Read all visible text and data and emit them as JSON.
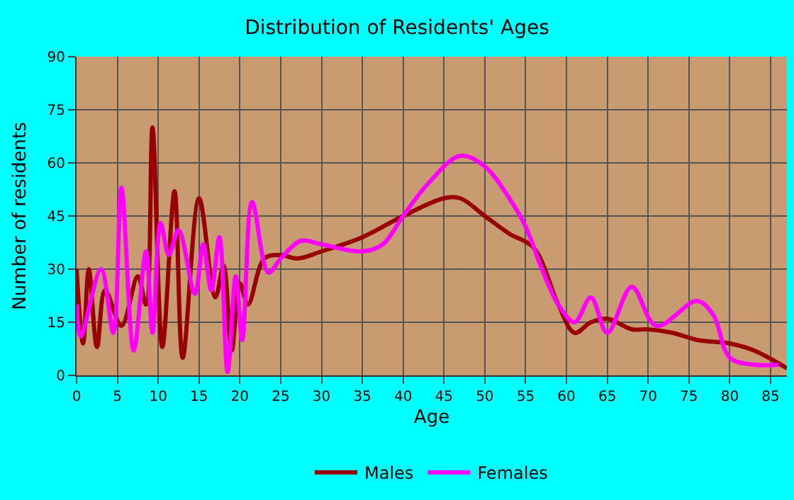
{
  "chart_data": {
    "type": "line",
    "title": "Distribution of Residents' Ages",
    "xlabel": "Age",
    "ylabel": "Number of residents",
    "xlim": [
      0,
      87
    ],
    "xticks": [
      0,
      5,
      10,
      15,
      20,
      25,
      30,
      35,
      40,
      45,
      50,
      55,
      60,
      65,
      70,
      75,
      80,
      85
    ],
    "ylim": [
      0,
      90
    ],
    "yticks": [
      0,
      15,
      30,
      45,
      60,
      75,
      90
    ],
    "grid": true,
    "legend": "bottom",
    "marker": "none",
    "line_style": "solid",
    "series": [
      {
        "name": "Males",
        "color": "#990000",
        "x": [
          0,
          0.8,
          1.5,
          2.5,
          3.5,
          5.5,
          7.5,
          8.5,
          9.3,
          10.5,
          12,
          13,
          15,
          17,
          18,
          19,
          20,
          21,
          23,
          25,
          27,
          30,
          35,
          40,
          45,
          47,
          50,
          53,
          56,
          59,
          61,
          63,
          65,
          68,
          70,
          73,
          76,
          80,
          83,
          87
        ],
        "values": [
          30,
          9,
          30,
          8,
          24,
          14,
          28,
          20,
          70,
          8,
          52,
          5,
          50,
          22,
          31,
          7,
          26,
          20,
          33,
          34,
          33,
          35,
          39,
          45,
          50,
          50,
          45,
          40,
          36,
          20,
          12,
          15,
          16,
          13,
          13,
          12,
          10,
          9,
          7,
          2
        ]
      },
      {
        "name": "Females",
        "color": "#ff00ff",
        "x": [
          0,
          0.5,
          3,
          4.5,
          5.5,
          7,
          8.5,
          9.3,
          10.3,
          11.3,
          12.5,
          14.5,
          15.5,
          16.5,
          17.5,
          18.5,
          19.5,
          20.3,
          21.5,
          23.5,
          25,
          27.5,
          30,
          35,
          37.5,
          40,
          43,
          47,
          50,
          53,
          55,
          57,
          59,
          61,
          63,
          65,
          68,
          71,
          76,
          78,
          80,
          83,
          86
        ],
        "values": [
          20,
          11,
          30,
          12,
          53,
          7,
          35,
          12,
          43,
          34,
          41,
          23,
          37,
          24,
          39,
          1,
          28,
          10,
          49,
          29,
          33,
          38,
          37,
          35,
          37,
          45,
          54,
          62,
          59,
          50,
          42,
          30,
          20,
          15,
          22,
          12,
          25,
          14,
          21,
          17,
          5,
          3,
          3
        ]
      }
    ]
  }
}
